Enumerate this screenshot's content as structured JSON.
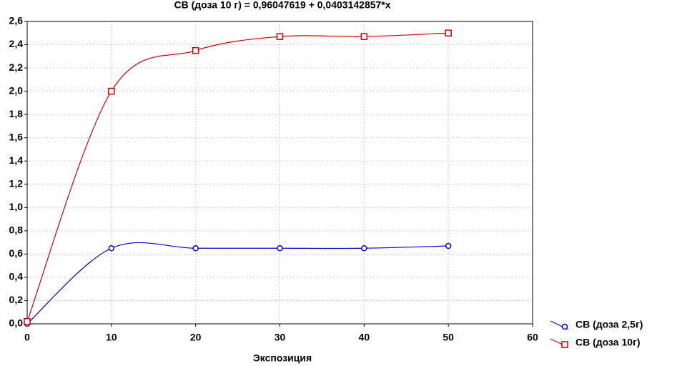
{
  "chart_data": {
    "type": "line",
    "title": "СВ (доза 10 г) = 0,96047619 + 0,0403142857*x",
    "x_label": "Экспозиция",
    "x": [
      0,
      10,
      20,
      30,
      40,
      50
    ],
    "series": [
      {
        "name": "СВ (доза 2,5г)",
        "color": "#0000cc",
        "marker": "circle",
        "values": [
          0.0,
          0.65,
          0.65,
          0.65,
          0.65,
          0.67
        ]
      },
      {
        "name": "СВ (доза 10г)",
        "color": "#cc0000",
        "marker": "square",
        "values": [
          0.02,
          2.0,
          2.35,
          2.47,
          2.47,
          2.5
        ]
      }
    ],
    "xlim": [
      0,
      60
    ],
    "xticks": [
      0,
      10,
      20,
      30,
      40,
      50,
      60
    ],
    "ylim": [
      0,
      2.6
    ],
    "yticks": [
      {
        "value": 0,
        "label": "0,0"
      },
      {
        "value": 0.2,
        "label": "0,2"
      },
      {
        "value": 0.4,
        "label": "0,4"
      },
      {
        "value": 0.6,
        "label": "0,6"
      },
      {
        "value": 0.8,
        "label": "0,8"
      },
      {
        "value": 1.0,
        "label": "1,0"
      },
      {
        "value": 1.2,
        "label": "1,2"
      },
      {
        "value": 1.4,
        "label": "1,4"
      },
      {
        "value": 1.6,
        "label": "1,6"
      },
      {
        "value": 1.8,
        "label": "1,8"
      },
      {
        "value": 2.0,
        "label": "2,0"
      },
      {
        "value": 2.2,
        "label": "2,2"
      },
      {
        "value": 2.4,
        "label": "2,4"
      },
      {
        "value": 2.6,
        "label": "2,6"
      }
    ],
    "grid": true
  }
}
